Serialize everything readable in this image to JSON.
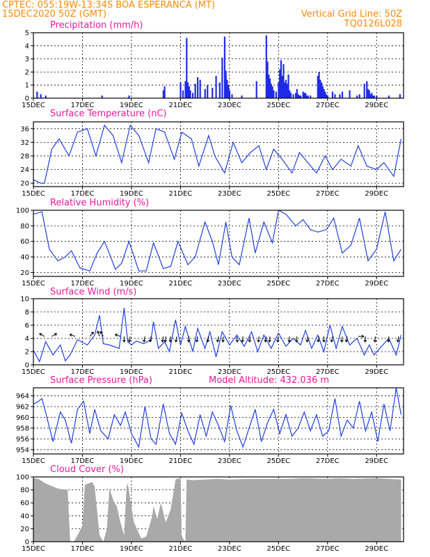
{
  "header": {
    "line1": "CPTEC:   055:19W-13:34S   BOA ESPERANCA (MT)",
    "line2": "15DEC2020 50Z (GMT)",
    "vgrid": "Vertical Grid Line: 50Z",
    "code": "TQ0126L028"
  },
  "colors": {
    "header": "#ff8a00",
    "title": "#e6199a",
    "line": "#1f3fe0",
    "bar": "#1f2be6",
    "cloud": "#a9a9a9"
  },
  "x_labels": [
    "15DEC",
    "17DEC",
    "19DEC",
    "21DEC",
    "23DEC",
    "25DEC",
    "27DEC",
    "29DEC"
  ],
  "x_label_days": [
    0,
    2,
    4,
    6,
    8,
    10,
    12,
    14
  ],
  "x_range": [
    0,
    15.1
  ],
  "panels": {
    "precip": {
      "title": "Precipitation  (mm/h)",
      "yticks": [
        "0",
        "1",
        "2",
        "3",
        "4",
        "5"
      ]
    },
    "temp": {
      "title": "Surface Temperature (nC)",
      "yticks": [
        "20",
        "24",
        "28",
        "32",
        "36"
      ]
    },
    "rh": {
      "title": "Relative Humidity (%)",
      "yticks": [
        "20",
        "40",
        "60",
        "80",
        "100"
      ]
    },
    "wind": {
      "title": "Surface Wind (m/s)",
      "yticks": [
        "0",
        "2",
        "4",
        "6",
        "8",
        "10"
      ]
    },
    "press": {
      "title": "Surface Pressure (hPa)",
      "extra": "Model Altitude: 432.036  m",
      "yticks": [
        "954",
        "956",
        "958",
        "960",
        "962",
        "964"
      ]
    },
    "cloud": {
      "title": "Cloud Cover (%)",
      "yticks": [
        "0",
        "20",
        "40",
        "60",
        "80",
        "100"
      ]
    }
  },
  "chart_data": [
    {
      "type": "bar",
      "title": "Precipitation  (mm/h)",
      "ylim": [
        0,
        5
      ],
      "x_unit": "days since 15DEC 00Z",
      "x": [
        0.15,
        0.3,
        0.5,
        2.8,
        3.9,
        5.3,
        5.35,
        6.0,
        6.1,
        6.2,
        6.25,
        6.3,
        6.35,
        6.4,
        6.5,
        6.6,
        6.7,
        6.8,
        7.0,
        7.1,
        7.3,
        7.45,
        7.6,
        7.7,
        7.8,
        7.85,
        7.9,
        7.95,
        8.0,
        8.1,
        8.5,
        9.1,
        9.5,
        9.55,
        9.6,
        9.65,
        9.7,
        9.75,
        9.8,
        9.9,
        10.0,
        10.05,
        10.1,
        10.15,
        10.2,
        10.25,
        10.3,
        10.35,
        10.4,
        10.45,
        10.5,
        10.6,
        10.7,
        10.75,
        10.8,
        10.85,
        10.9,
        11.0,
        11.05,
        11.1,
        11.15,
        11.2,
        11.3,
        11.6,
        11.65,
        11.7,
        11.75,
        11.8,
        11.85,
        11.9,
        11.95,
        12.0,
        12.2,
        12.3,
        12.5,
        12.6,
        12.9,
        13.2,
        13.3,
        13.5,
        13.6,
        13.65,
        13.7,
        13.75,
        13.8,
        13.85,
        13.9,
        14.0,
        14.5,
        14.95
      ],
      "values": [
        0.5,
        0.3,
        0.2,
        0.2,
        0.2,
        0.6,
        0.9,
        1.2,
        0.6,
        1.3,
        4.6,
        1.2,
        0.9,
        0.6,
        0.4,
        1.1,
        1.6,
        1.4,
        0.7,
        1.0,
        0.8,
        1.7,
        1.2,
        3.1,
        4.7,
        2.1,
        1.4,
        1.0,
        0.6,
        0.3,
        0.2,
        1.3,
        4.8,
        2.8,
        1.8,
        1.5,
        1.1,
        0.9,
        0.6,
        0.5,
        1.2,
        2.2,
        2.9,
        1.7,
        2.6,
        1.2,
        1.4,
        1.1,
        1.8,
        0.6,
        0.4,
        0.3,
        0.4,
        0.7,
        0.3,
        0.2,
        0.2,
        0.5,
        0.4,
        0.4,
        0.2,
        0.2,
        0.2,
        1.7,
        2.0,
        1.4,
        1.2,
        0.9,
        0.7,
        0.5,
        0.3,
        0.2,
        0.5,
        0.3,
        0.3,
        0.5,
        0.6,
        0.2,
        0.3,
        1.1,
        1.3,
        0.7,
        0.6,
        0.3,
        0.4,
        0.2,
        0.2,
        0.2,
        0.2,
        0.3
      ]
    },
    {
      "type": "line",
      "title": "Surface Temperature (nC)",
      "ylim": [
        19,
        38
      ],
      "x_unit": "days since 15DEC 00Z",
      "x": [
        0,
        0.3,
        0.45,
        0.75,
        1.05,
        1.45,
        1.8,
        2.2,
        2.55,
        2.9,
        3.25,
        3.6,
        3.95,
        4.3,
        4.7,
        5.0,
        5.35,
        5.75,
        6.05,
        6.45,
        6.75,
        7.15,
        7.4,
        7.8,
        8.15,
        8.5,
        8.85,
        9.2,
        9.5,
        9.8,
        10.15,
        10.55,
        10.85,
        11.2,
        11.55,
        11.9,
        12.2,
        12.55,
        12.95,
        13.25,
        13.6,
        14.0,
        14.3,
        14.7,
        15.0
      ],
      "values": [
        21,
        20,
        20,
        30,
        33,
        28,
        35,
        36,
        28,
        37,
        34,
        26,
        37,
        34,
        26,
        36,
        35,
        27,
        35,
        33,
        25,
        34,
        28,
        23,
        32,
        26,
        29,
        31,
        24,
        30,
        27,
        23,
        29,
        26,
        23,
        28,
        24,
        27,
        25,
        31,
        25,
        24,
        26,
        22,
        33
      ]
    },
    {
      "type": "line",
      "title": "Relative Humidity (%)",
      "ylim": [
        15,
        100
      ],
      "x_unit": "days since 15DEC 00Z",
      "x": [
        0,
        0.35,
        0.65,
        1.0,
        1.3,
        1.55,
        1.9,
        2.3,
        2.6,
        2.9,
        3.35,
        3.6,
        3.9,
        4.3,
        4.6,
        4.9,
        5.3,
        5.6,
        5.9,
        6.3,
        6.6,
        7.0,
        7.3,
        7.55,
        7.85,
        8.1,
        8.4,
        8.8,
        9.05,
        9.4,
        9.75,
        10.0,
        10.3,
        10.7,
        11.0,
        11.3,
        11.6,
        11.95,
        12.25,
        12.6,
        12.95,
        13.3,
        13.65,
        14.0,
        14.35,
        14.7,
        15.0
      ],
      "values": [
        95,
        98,
        50,
        35,
        40,
        48,
        26,
        22,
        45,
        60,
        24,
        32,
        60,
        22,
        22,
        58,
        25,
        28,
        60,
        30,
        40,
        85,
        60,
        30,
        85,
        40,
        30,
        90,
        45,
        85,
        58,
        100,
        95,
        80,
        88,
        75,
        72,
        75,
        90,
        45,
        55,
        90,
        35,
        50,
        98,
        35,
        50
      ]
    },
    {
      "type": "line",
      "title": "Surface Wind (m/s)",
      "ylim": [
        0,
        10
      ],
      "x_unit": "days since 15DEC 00Z",
      "x": [
        0,
        0.25,
        0.5,
        0.8,
        1.1,
        1.3,
        1.5,
        1.8,
        2.2,
        2.5,
        2.7,
        2.85,
        3.1,
        3.5,
        3.7,
        3.85,
        4.0,
        4.2,
        4.5,
        4.8,
        4.9,
        5.1,
        5.35,
        5.55,
        5.8,
        6.0,
        6.2,
        6.5,
        6.7,
        7.0,
        7.2,
        7.45,
        7.7,
        8.0,
        8.3,
        8.6,
        8.9,
        9.15,
        9.4,
        9.7,
        10.0,
        10.3,
        10.6,
        10.9,
        11.1,
        11.35,
        11.6,
        11.85,
        12.1,
        12.35,
        12.6,
        12.9,
        13.2,
        13.5,
        13.7,
        13.9,
        14.2,
        14.5,
        14.8,
        15.0
      ],
      "values": [
        2.2,
        0.5,
        3.5,
        1.5,
        3.0,
        0.6,
        1.5,
        3.8,
        3.0,
        4.5,
        7.5,
        3.2,
        3.0,
        2.5,
        8.6,
        3.5,
        3.0,
        3.6,
        3.2,
        3.8,
        6.5,
        2.5,
        3.5,
        2.0,
        6.8,
        3.0,
        5.8,
        2.0,
        5.5,
        2.5,
        5.0,
        1.2,
        5.0,
        3.0,
        4.5,
        2.8,
        5.0,
        2.0,
        4.5,
        2.5,
        4.8,
        2.8,
        4.0,
        3.0,
        5.2,
        2.5,
        4.5,
        2.0,
        6.0,
        2.5,
        5.8,
        3.0,
        4.0,
        1.5,
        3.0,
        1.5,
        2.8,
        4.0,
        1.5,
        4.5
      ]
    },
    {
      "type": "line",
      "title": "Surface Pressure (hPa)",
      "ylim": [
        953.2,
        965.5
      ],
      "x_unit": "days since 15DEC 00Z",
      "x": [
        0,
        0.15,
        0.35,
        0.55,
        0.8,
        1.1,
        1.3,
        1.55,
        1.8,
        2.05,
        2.3,
        2.5,
        2.75,
        3.05,
        3.3,
        3.55,
        3.75,
        4.0,
        4.3,
        4.55,
        4.8,
        5.0,
        5.3,
        5.55,
        5.8,
        6.05,
        6.3,
        6.55,
        6.8,
        7.05,
        7.3,
        7.55,
        7.8,
        8.05,
        8.3,
        8.55,
        8.8,
        9.05,
        9.3,
        9.55,
        9.8,
        10.05,
        10.3,
        10.55,
        10.8,
        11.05,
        11.3,
        11.55,
        11.8,
        12.05,
        12.3,
        12.55,
        12.8,
        13.05,
        13.3,
        13.55,
        13.8,
        14.05,
        14.3,
        14.55,
        14.8,
        15.0
      ],
      "values": [
        962.5,
        962.8,
        963.5,
        960.0,
        955.5,
        961.0,
        959.5,
        955.2,
        961.5,
        963.0,
        957.0,
        961.5,
        957.5,
        956.0,
        960.5,
        958.5,
        961.0,
        957.0,
        954.5,
        962.0,
        956.0,
        955.0,
        962.5,
        957.0,
        955.0,
        960.8,
        957.5,
        955.0,
        960.5,
        956.5,
        961.0,
        958.5,
        955.5,
        962.2,
        957.5,
        954.5,
        958.0,
        961.5,
        955.5,
        959.0,
        961.5,
        957.0,
        960.5,
        956.5,
        958.0,
        961.0,
        957.5,
        960.5,
        956.5,
        957.5,
        963.5,
        956.5,
        959.5,
        958.0,
        963.0,
        957.5,
        961.0,
        955.5,
        962.5,
        957.5,
        965.5,
        960.5
      ]
    },
    {
      "type": "area",
      "title": "Cloud Cover (%)",
      "ylim": [
        0,
        100
      ],
      "x_unit": "days since 15DEC 00Z",
      "x": [
        0,
        0.2,
        0.5,
        0.8,
        1.0,
        1.4,
        1.5,
        1.65,
        1.8,
        2.0,
        2.1,
        2.4,
        2.5,
        2.7,
        2.85,
        3.0,
        3.1,
        3.3,
        3.4,
        3.55,
        3.7,
        3.8,
        3.85,
        4.1,
        4.4,
        4.6,
        4.7,
        4.85,
        4.9,
        5.05,
        5.2,
        5.4,
        5.6,
        5.8,
        5.85,
        6.0,
        6.05,
        6.1,
        6.2,
        6.25,
        6.5,
        7.0,
        7.5,
        8.0,
        9.0,
        10.0,
        10.5,
        11.0,
        12.0,
        12.5,
        13.0,
        14.0,
        15.0
      ],
      "values": [
        98,
        97,
        90,
        85,
        82,
        80,
        0,
        0,
        10,
        25,
        88,
        92,
        85,
        10,
        0,
        20,
        82,
        60,
        55,
        30,
        10,
        85,
        90,
        30,
        5,
        8,
        20,
        40,
        55,
        35,
        60,
        30,
        50,
        96,
        97,
        98,
        10,
        5,
        0,
        96,
        95,
        96,
        97,
        96,
        97,
        97,
        97,
        98,
        97,
        98,
        97,
        98,
        96
      ]
    }
  ],
  "wind_vectors": {
    "x": [
      0.45,
      0.75,
      1.7,
      2.3,
      2.7,
      2.85,
      3.55,
      3.7,
      3.95,
      4.55,
      4.8,
      5.3,
      5.4,
      5.6,
      5.85,
      6.35,
      6.7,
      7.15,
      7.55,
      7.75,
      8.3,
      8.55,
      8.85,
      9.2,
      9.5,
      9.65,
      10.0,
      10.45,
      10.75,
      11.2,
      11.65,
      11.85,
      12.2,
      12.6,
      12.8,
      13.25,
      13.55,
      13.95,
      14.5,
      14.9
    ],
    "angle_deg": [
      -150,
      -30,
      -160,
      -50,
      -110,
      240,
      200,
      90,
      100,
      100,
      100,
      100,
      95,
      95,
      100,
      95,
      100,
      100,
      100,
      95,
      85,
      95,
      100,
      95,
      100,
      95,
      100,
      95,
      95,
      100,
      100,
      90,
      100,
      95,
      100,
      0,
      95,
      95,
      95,
      100
    ]
  }
}
